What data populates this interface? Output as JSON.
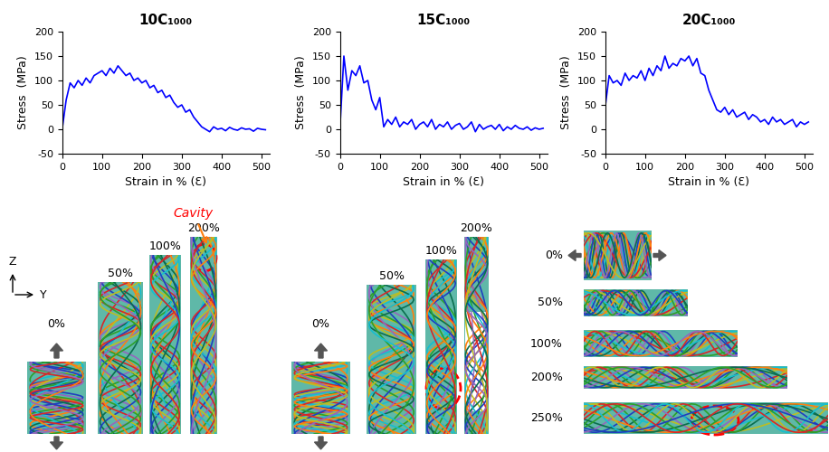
{
  "chart_data": [
    {
      "type": "line",
      "title": "10C₁₀₀₀",
      "x_label": "Strain in % (Ɛ)",
      "y_label": "Stress  (MPa)",
      "x": [
        0,
        10,
        20,
        30,
        40,
        50,
        60,
        70,
        80,
        90,
        100,
        110,
        120,
        130,
        140,
        150,
        160,
        170,
        180,
        190,
        200,
        210,
        220,
        230,
        240,
        250,
        260,
        270,
        280,
        290,
        300,
        310,
        320,
        330,
        340,
        350,
        360,
        370,
        380,
        390,
        400,
        410,
        420,
        430,
        440,
        450,
        460,
        470,
        480,
        490,
        500,
        510
      ],
      "xlim": [
        0,
        520
      ],
      "xticks": [
        0,
        100,
        200,
        300,
        400,
        500
      ],
      "ylim": [
        -50,
        200
      ],
      "yticks": [
        -50,
        0,
        50,
        100,
        150,
        200
      ],
      "series": [
        {
          "color": "#0000ff",
          "values": [
            0,
            60,
            95,
            85,
            100,
            90,
            105,
            95,
            110,
            115,
            120,
            110,
            125,
            115,
            130,
            120,
            110,
            115,
            100,
            105,
            95,
            100,
            85,
            90,
            75,
            80,
            65,
            70,
            55,
            45,
            50,
            35,
            40,
            25,
            15,
            5,
            0,
            -5,
            5,
            0,
            2,
            -3,
            4,
            0,
            -2,
            3,
            0,
            1,
            -4,
            2,
            0,
            -1
          ]
        }
      ]
    },
    {
      "type": "line",
      "title": "15C₁₀₀₀",
      "x_label": "Strain in % (Ɛ)",
      "y_label": "Stress  (MPa)",
      "x": [
        0,
        10,
        20,
        30,
        40,
        50,
        60,
        70,
        80,
        90,
        100,
        110,
        120,
        130,
        140,
        150,
        160,
        170,
        180,
        190,
        200,
        210,
        220,
        230,
        240,
        250,
        260,
        270,
        280,
        290,
        300,
        310,
        320,
        330,
        340,
        350,
        360,
        370,
        380,
        390,
        400,
        410,
        420,
        430,
        440,
        450,
        460,
        470,
        480,
        490,
        500,
        510
      ],
      "xlim": [
        0,
        520
      ],
      "xticks": [
        0,
        100,
        200,
        300,
        400,
        500
      ],
      "ylim": [
        -50,
        200
      ],
      "yticks": [
        -50,
        0,
        50,
        100,
        150,
        200
      ],
      "series": [
        {
          "color": "#0000ff",
          "values": [
            0,
            150,
            80,
            120,
            110,
            130,
            95,
            100,
            60,
            40,
            65,
            5,
            20,
            10,
            25,
            5,
            15,
            10,
            20,
            0,
            10,
            15,
            5,
            20,
            0,
            10,
            5,
            15,
            0,
            8,
            12,
            0,
            5,
            15,
            -5,
            10,
            0,
            5,
            8,
            0,
            10,
            -3,
            5,
            0,
            8,
            2,
            0,
            5,
            -2,
            3,
            0,
            2
          ]
        }
      ]
    },
    {
      "type": "line",
      "title": "20C₁₀₀₀",
      "x_label": "Strain in % (Ɛ)",
      "y_label": "Stress  (MPa)",
      "x": [
        0,
        10,
        20,
        30,
        40,
        50,
        60,
        70,
        80,
        90,
        100,
        110,
        120,
        130,
        140,
        150,
        160,
        170,
        180,
        190,
        200,
        210,
        220,
        230,
        240,
        250,
        260,
        270,
        280,
        290,
        300,
        310,
        320,
        330,
        340,
        350,
        360,
        370,
        380,
        390,
        400,
        410,
        420,
        430,
        440,
        450,
        460,
        470,
        480,
        490,
        500,
        510
      ],
      "xlim": [
        0,
        520
      ],
      "xticks": [
        0,
        100,
        200,
        300,
        400,
        500
      ],
      "ylim": [
        -50,
        200
      ],
      "yticks": [
        -50,
        0,
        50,
        100,
        150,
        200
      ],
      "series": [
        {
          "color": "#0000ff",
          "values": [
            45,
            110,
            95,
            100,
            90,
            115,
            100,
            110,
            105,
            120,
            100,
            125,
            110,
            130,
            120,
            150,
            125,
            135,
            130,
            145,
            140,
            150,
            130,
            145,
            115,
            110,
            80,
            60,
            40,
            35,
            45,
            30,
            40,
            25,
            30,
            35,
            20,
            30,
            25,
            15,
            20,
            10,
            25,
            15,
            20,
            10,
            15,
            20,
            5,
            15,
            10,
            15
          ]
        }
      ]
    }
  ],
  "axes_indicator": {
    "vertical": "Z",
    "horizontal": "Y"
  },
  "snapshots": [
    {
      "orientation": "vertical",
      "strain_labels": [
        "0%",
        "50%",
        "100%",
        "200%"
      ],
      "cavity_at": "200%",
      "cavity_label": "Cavity"
    },
    {
      "orientation": "vertical",
      "strain_labels": [
        "0%",
        "50%",
        "100%",
        "200%"
      ],
      "cavity_at": "100%"
    },
    {
      "orientation": "horizontal",
      "strain_labels": [
        "0%",
        "50%",
        "100%",
        "200%",
        "250%"
      ],
      "cavity_at": "250%"
    }
  ]
}
